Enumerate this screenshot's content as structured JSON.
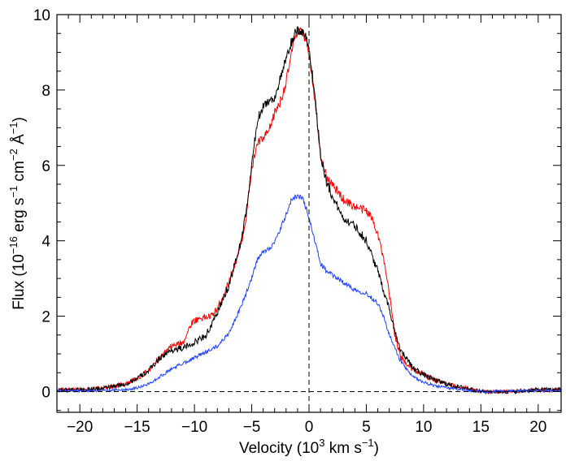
{
  "chart_data": {
    "type": "line",
    "title": "",
    "xlabel": {
      "prefix": "Velocity (10",
      "sup": "3",
      "mid": " km s",
      "sup2": "−1",
      "suffix": ")"
    },
    "ylabel": {
      "p1": "Flux (10",
      "s1": "−16",
      "p2": " erg s",
      "s2": "−1",
      "p3": " cm",
      "s3": "−2",
      "p4": " Å",
      "s4": "−1",
      "p5": ")"
    },
    "xlim": [
      -22,
      22
    ],
    "ylim": [
      -0.55,
      10
    ],
    "x_ticks": [
      {
        "value": -20,
        "label": "−20"
      },
      {
        "value": -15,
        "label": "−15"
      },
      {
        "value": -10,
        "label": "−10"
      },
      {
        "value": -5,
        "label": "−5"
      },
      {
        "value": 0,
        "label": "0"
      },
      {
        "value": 5,
        "label": "5"
      },
      {
        "value": 10,
        "label": "10"
      },
      {
        "value": 15,
        "label": "15"
      },
      {
        "value": 20,
        "label": "20"
      }
    ],
    "y_ticks": [
      {
        "value": 0,
        "label": "0"
      },
      {
        "value": 2,
        "label": "2"
      },
      {
        "value": 4,
        "label": "4"
      },
      {
        "value": 6,
        "label": "6"
      },
      {
        "value": 8,
        "label": "8"
      },
      {
        "value": 10,
        "label": "10"
      }
    ],
    "reference_lines": {
      "vertical_x": 0,
      "horizontal_y": 0,
      "style": "dashed"
    },
    "series": [
      {
        "name": "red",
        "color": "#ff0000",
        "noise": 0.05,
        "x": [
          -22,
          -20,
          -18,
          -16,
          -15,
          -14,
          -13,
          -12,
          -11,
          -10.2,
          -9.5,
          -8.5,
          -8,
          -7,
          -6,
          -5.5,
          -5,
          -4.5,
          -4,
          -3.5,
          -3,
          -2.5,
          -2,
          -1.5,
          -1.2,
          -0.8,
          -0.3,
          0,
          0.5,
          1,
          1.5,
          2,
          2.5,
          3,
          4,
          5,
          5.5,
          6,
          6.5,
          7,
          7.5,
          8,
          9,
          10,
          11,
          12,
          13,
          14,
          15,
          16,
          18,
          20,
          22
        ],
        "y": [
          0.05,
          0.05,
          0.08,
          0.2,
          0.35,
          0.55,
          0.9,
          1.2,
          1.3,
          1.85,
          1.95,
          2.0,
          2.2,
          2.9,
          3.8,
          4.6,
          5.9,
          6.6,
          6.7,
          6.9,
          7.4,
          7.7,
          8.2,
          9.0,
          9.5,
          9.55,
          9.4,
          9.0,
          7.8,
          6.3,
          5.7,
          5.5,
          5.3,
          5.1,
          4.9,
          4.8,
          4.6,
          4.2,
          3.5,
          2.6,
          1.5,
          0.9,
          0.6,
          0.45,
          0.3,
          0.2,
          0.12,
          0.08,
          0.0,
          0.0,
          0.0,
          0.05,
          0.05
        ]
      },
      {
        "name": "black",
        "color": "#000000",
        "noise": 0.05,
        "x": [
          -22,
          -20,
          -18,
          -16,
          -15,
          -14,
          -13,
          -12,
          -11,
          -10,
          -9,
          -8.5,
          -8,
          -7,
          -6,
          -5.5,
          -5,
          -4.5,
          -4,
          -3.5,
          -3,
          -2.5,
          -2,
          -1.5,
          -1.2,
          -0.8,
          -0.3,
          0,
          0.5,
          1,
          1.5,
          2,
          2.5,
          3,
          4,
          5,
          6,
          7,
          7.5,
          8,
          9,
          10,
          11,
          12,
          13,
          14,
          15,
          16,
          18,
          20,
          22
        ],
        "y": [
          0.05,
          0.05,
          0.08,
          0.2,
          0.35,
          0.55,
          0.9,
          1.1,
          1.15,
          1.3,
          1.5,
          1.75,
          2.1,
          2.8,
          3.9,
          4.7,
          6.0,
          7.2,
          7.6,
          7.7,
          7.8,
          8.3,
          8.8,
          9.3,
          9.5,
          9.58,
          9.45,
          9.1,
          7.9,
          6.3,
          5.6,
          5.2,
          4.9,
          4.6,
          4.4,
          4.0,
          3.2,
          2.2,
          1.6,
          1.1,
          0.65,
          0.45,
          0.3,
          0.2,
          0.12,
          0.08,
          0.0,
          0.0,
          0.0,
          0.05,
          0.05
        ]
      },
      {
        "name": "blue",
        "color": "#2244ff",
        "noise": 0.03,
        "x": [
          -22,
          -20,
          -18,
          -16,
          -15,
          -14,
          -13,
          -12,
          -11,
          -10,
          -9,
          -8,
          -7,
          -6,
          -5,
          -4.5,
          -4,
          -3.5,
          -3,
          -2.5,
          -2,
          -1.5,
          -1,
          -0.5,
          0,
          0.5,
          1,
          1.5,
          2,
          3,
          4,
          5,
          6,
          6.5,
          7,
          8,
          9,
          10,
          11,
          12,
          13,
          14,
          15,
          16,
          18,
          20,
          22
        ],
        "y": [
          0.02,
          0.02,
          0.03,
          0.05,
          0.1,
          0.2,
          0.4,
          0.6,
          0.75,
          0.9,
          1.05,
          1.2,
          1.55,
          2.2,
          3.0,
          3.5,
          3.7,
          3.8,
          3.95,
          4.3,
          4.7,
          5.1,
          5.2,
          5.1,
          4.6,
          4.0,
          3.4,
          3.2,
          3.1,
          2.9,
          2.7,
          2.6,
          2.35,
          2.0,
          1.5,
          0.8,
          0.4,
          0.25,
          0.15,
          0.1,
          0.06,
          0.03,
          0.0,
          0.0,
          0.02,
          0.02,
          0.02
        ]
      }
    ]
  }
}
